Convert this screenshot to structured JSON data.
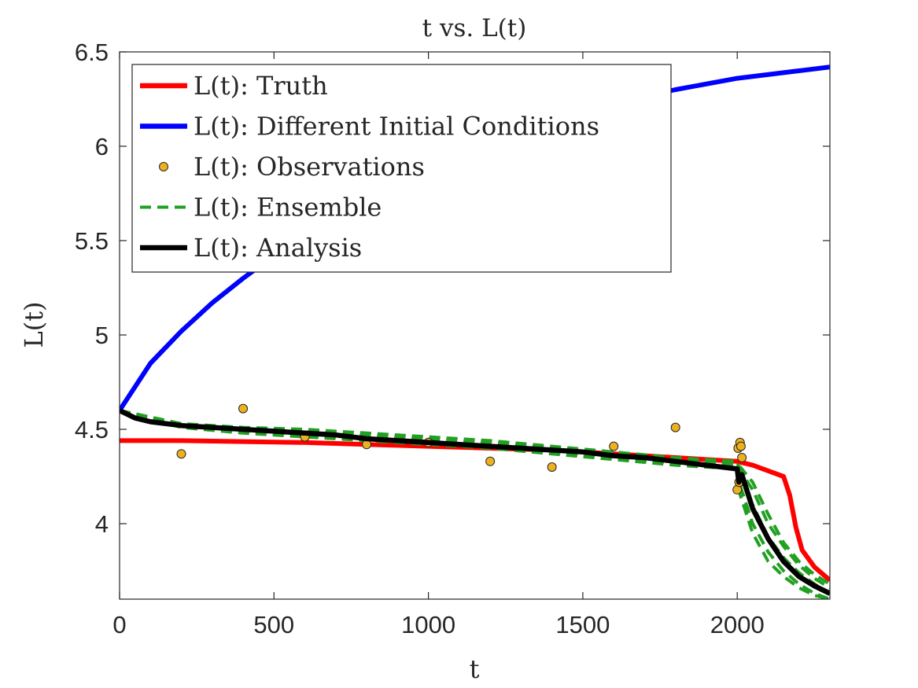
{
  "chart_data": {
    "type": "line",
    "title": "t vs. L(t)",
    "xlabel": "t",
    "ylabel": "L(t)",
    "xlim": [
      0,
      2300
    ],
    "ylim": [
      3.6,
      6.5
    ],
    "xticks": [
      0,
      500,
      1000,
      1500,
      2000
    ],
    "yticks": [
      4,
      4.5,
      5,
      5.5,
      6,
      6.5
    ],
    "xtick_labels": [
      "0",
      "500",
      "1000",
      "1500",
      "2000"
    ],
    "ytick_labels": [
      "4",
      "4.5",
      "5",
      "5.5",
      "6",
      "6.5"
    ],
    "grid": false,
    "legend_position": "top-left",
    "series": [
      {
        "name": "L(t): Truth",
        "style": "line",
        "color": "#ff0000",
        "x": [
          0,
          200,
          400,
          600,
          800,
          1000,
          1200,
          1400,
          1600,
          1800,
          2000,
          2050,
          2100,
          2150,
          2170,
          2190,
          2210,
          2250,
          2300
        ],
        "y": [
          4.44,
          4.44,
          4.435,
          4.43,
          4.42,
          4.41,
          4.4,
          4.39,
          4.37,
          4.35,
          4.33,
          4.31,
          4.28,
          4.25,
          4.15,
          3.98,
          3.86,
          3.77,
          3.7
        ]
      },
      {
        "name": "L(t): Different Initial Conditions",
        "style": "line",
        "color": "#0000ff",
        "x": [
          0,
          100,
          200,
          300,
          400,
          500,
          600,
          700,
          800,
          1000,
          1200,
          1400,
          1600,
          1800,
          2000,
          2200,
          2300
        ],
        "y": [
          4.6,
          4.85,
          5.02,
          5.17,
          5.3,
          5.42,
          5.53,
          5.63,
          5.72,
          5.89,
          6.03,
          6.14,
          6.23,
          6.3,
          6.36,
          6.4,
          6.42
        ]
      },
      {
        "name": "L(t): Observations",
        "style": "markers",
        "color": "#edb120",
        "x": [
          200,
          400,
          600,
          800,
          1000,
          1200,
          1400,
          1600,
          1800,
          2000,
          2003,
          2006,
          2009,
          2012,
          2015
        ],
        "y": [
          4.37,
          4.61,
          4.46,
          4.42,
          4.43,
          4.33,
          4.3,
          4.41,
          4.51,
          4.18,
          4.4,
          4.22,
          4.43,
          4.41,
          4.35
        ]
      },
      {
        "name": "L(t): Ensemble",
        "style": "dashed",
        "color": "#22a022",
        "members": [
          {
            "x": [
              0,
              200,
              400,
              600,
              800,
              1000,
              1200,
              1400,
              1600,
              1800,
              2000,
              2010,
              2050,
              2100,
              2150,
              2200,
              2250,
              2300
            ],
            "y": [
              4.6,
              4.53,
              4.51,
              4.5,
              4.48,
              4.46,
              4.44,
              4.41,
              4.38,
              4.35,
              4.33,
              4.25,
              4.1,
              3.93,
              3.82,
              3.74,
              3.68,
              3.63
            ]
          },
          {
            "x": [
              0,
              200,
              400,
              600,
              800,
              1000,
              1200,
              1400,
              1600,
              1800,
              2000,
              2010,
              2050,
              2100,
              2150,
              2200,
              2250,
              2300
            ],
            "y": [
              4.6,
              4.52,
              4.49,
              4.47,
              4.45,
              4.43,
              4.41,
              4.38,
              4.35,
              4.32,
              4.3,
              4.2,
              4.0,
              3.85,
              3.75,
              3.68,
              3.63,
              3.6
            ]
          },
          {
            "x": [
              0,
              200,
              400,
              600,
              800,
              1000,
              1200,
              1400,
              1600,
              1800,
              2000,
              2010,
              2050,
              2100,
              2150,
              2200,
              2250,
              2300
            ],
            "y": [
              4.6,
              4.52,
              4.5,
              4.49,
              4.47,
              4.45,
              4.43,
              4.4,
              4.37,
              4.34,
              4.32,
              4.28,
              4.18,
              4.0,
              3.88,
              3.78,
              3.71,
              3.66
            ]
          },
          {
            "x": [
              0,
              200,
              400,
              600,
              800,
              1000,
              1200,
              1400,
              1600,
              1800,
              2000,
              2010,
              2050,
              2100,
              2150,
              2200,
              2250,
              2300
            ],
            "y": [
              4.6,
              4.51,
              4.48,
              4.46,
              4.44,
              4.42,
              4.4,
              4.37,
              4.34,
              4.31,
              4.29,
              4.15,
              3.95,
              3.8,
              3.72,
              3.66,
              3.62,
              3.6
            ]
          },
          {
            "x": [
              0,
              200,
              400,
              600,
              800,
              1000,
              1200,
              1400,
              1600,
              1800,
              2000,
              2010,
              2050,
              2100,
              2150,
              2200,
              2250,
              2300
            ],
            "y": [
              4.6,
              4.52,
              4.5,
              4.48,
              4.46,
              4.44,
              4.42,
              4.39,
              4.36,
              4.33,
              4.31,
              4.3,
              4.22,
              4.05,
              3.9,
              3.8,
              3.73,
              3.68
            ]
          }
        ]
      },
      {
        "name": "L(t): Analysis",
        "style": "line",
        "color": "#000000",
        "x": [
          0,
          50,
          100,
          200,
          300,
          400,
          500,
          600,
          700,
          800,
          900,
          1000,
          1100,
          1200,
          1300,
          1400,
          1500,
          1600,
          1700,
          1800,
          1900,
          2000,
          2005,
          2015,
          2050,
          2100,
          2150,
          2200,
          2250,
          2300
        ],
        "y": [
          4.6,
          4.56,
          4.54,
          4.52,
          4.51,
          4.5,
          4.49,
          4.48,
          4.47,
          4.45,
          4.44,
          4.43,
          4.42,
          4.41,
          4.4,
          4.39,
          4.38,
          4.36,
          4.35,
          4.33,
          4.31,
          4.29,
          4.22,
          4.26,
          4.08,
          3.92,
          3.8,
          3.72,
          3.67,
          3.63
        ]
      }
    ]
  }
}
